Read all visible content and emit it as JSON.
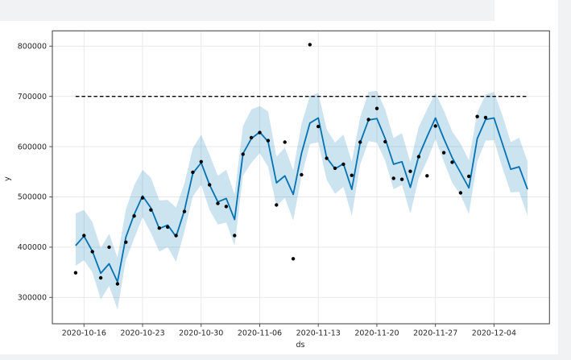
{
  "page": {
    "background_color": "#f1f2f4",
    "figure_color": "#ffffff"
  },
  "chart_data": {
    "type": "line",
    "title": "",
    "xlabel": "ds",
    "ylabel": "y",
    "legend": "none",
    "grid": true,
    "x_tick_labels": [
      "2020-10-16",
      "2020-10-23",
      "2020-10-30",
      "2020-11-06",
      "2020-11-13",
      "2020-11-20",
      "2020-11-27",
      "2020-12-04"
    ],
    "y_ticks": [
      300000,
      400000,
      500000,
      600000,
      700000,
      800000
    ],
    "ylim": [
      247000,
      830000
    ],
    "cap_line_value": 700000,
    "dates": [
      "2020-10-15",
      "2020-10-16",
      "2020-10-17",
      "2020-10-18",
      "2020-10-19",
      "2020-10-20",
      "2020-10-21",
      "2020-10-22",
      "2020-10-23",
      "2020-10-24",
      "2020-10-25",
      "2020-10-26",
      "2020-10-27",
      "2020-10-28",
      "2020-10-29",
      "2020-10-30",
      "2020-10-31",
      "2020-11-01",
      "2020-11-02",
      "2020-11-03",
      "2020-11-04",
      "2020-11-05",
      "2020-11-06",
      "2020-11-07",
      "2020-11-08",
      "2020-11-09",
      "2020-11-10",
      "2020-11-11",
      "2020-11-12",
      "2020-11-13",
      "2020-11-14",
      "2020-11-15",
      "2020-11-16",
      "2020-11-17",
      "2020-11-18",
      "2020-11-19",
      "2020-11-20",
      "2020-11-21",
      "2020-11-22",
      "2020-11-23",
      "2020-11-24",
      "2020-11-25",
      "2020-11-26",
      "2020-11-27",
      "2020-11-28",
      "2020-11-29",
      "2020-11-30",
      "2020-12-01",
      "2020-12-02",
      "2020-12-03",
      "2020-12-04",
      "2020-12-05",
      "2020-12-06",
      "2020-12-07",
      "2020-12-08"
    ],
    "series": [
      {
        "name": "actuals",
        "type": "scatter",
        "color": "#000000",
        "values": [
          349000,
          423000,
          391000,
          339000,
          400000,
          327000,
          410000,
          462000,
          498000,
          474000,
          438000,
          440000,
          423000,
          471000,
          549000,
          570000,
          524000,
          487000,
          481000,
          423000,
          585000,
          618000,
          628000,
          612000,
          484000,
          609000,
          377000,
          544000,
          803000,
          640000,
          577000,
          557000,
          565000,
          543000,
          609000,
          654000,
          676000,
          610000,
          537000,
          535000,
          551000,
          580000,
          542000,
          641000,
          588000,
          569000,
          508000,
          541000,
          660000,
          658000,
          null,
          null,
          null,
          null,
          null
        ]
      },
      {
        "name": "yhat",
        "type": "line",
        "color": "#0072b2",
        "values": [
          403000,
          422000,
          392000,
          348000,
          367000,
          331000,
          420000,
          465000,
          502000,
          478000,
          437000,
          444000,
          421000,
          473000,
          547000,
          568000,
          524000,
          490000,
          497000,
          455000,
          586000,
          616000,
          629000,
          610000,
          528000,
          542000,
          505000,
          587000,
          647000,
          657000,
          578000,
          556000,
          566000,
          515000,
          608000,
          653000,
          656000,
          616000,
          565000,
          570000,
          519000,
          581000,
          620000,
          657000,
          616000,
          578000,
          548000,
          518000,
          616000,
          654000,
          657000,
          606000,
          555000,
          560000,
          515000
        ]
      },
      {
        "name": "uncertainty-interval",
        "type": "band",
        "color": "rgba(0,114,178,0.2)",
        "lower": [
          363000,
          374000,
          350000,
          296000,
          323000,
          276000,
          375000,
          417000,
          460000,
          428000,
          391000,
          400000,
          371000,
          431000,
          501000,
          524000,
          474000,
          445000,
          449000,
          403000,
          542000,
          568000,
          587000,
          560000,
          482000,
          498000,
          453000,
          541000,
          605000,
          609000,
          534000,
          506000,
          520000,
          463000,
          564000,
          611000,
          608000,
          572000,
          515000,
          524000,
          467000,
          537000,
          572000,
          615000,
          570000,
          528000,
          504000,
          466000,
          570000,
          612000,
          613000,
          558000,
          509000,
          510000,
          463000
        ],
        "upper": [
          467000,
          474000,
          450000,
          398000,
          427000,
          379000,
          475000,
          523000,
          554000,
          538000,
          493000,
          494000,
          479000,
          527000,
          597000,
          624000,
          584000,
          542000,
          554000,
          505000,
          641000,
          674000,
          681000,
          670000,
          580000,
          598000,
          553000,
          645000,
          701000,
          707000,
          635000,
          608000,
          624000,
          570000,
          658000,
          709000,
          711000,
          674000,
          617000,
          627000,
          569000,
          639000,
          674000,
          707000,
          672000,
          630000,
          606000,
          573000,
          668000,
          704000,
          709000,
          662000,
          609000,
          618000,
          570000
        ]
      }
    ],
    "colors": {
      "cap_line": "#000000",
      "grid": "#e7e7e7",
      "spine": "#4d4d4d",
      "tick_text": "#262626"
    }
  }
}
